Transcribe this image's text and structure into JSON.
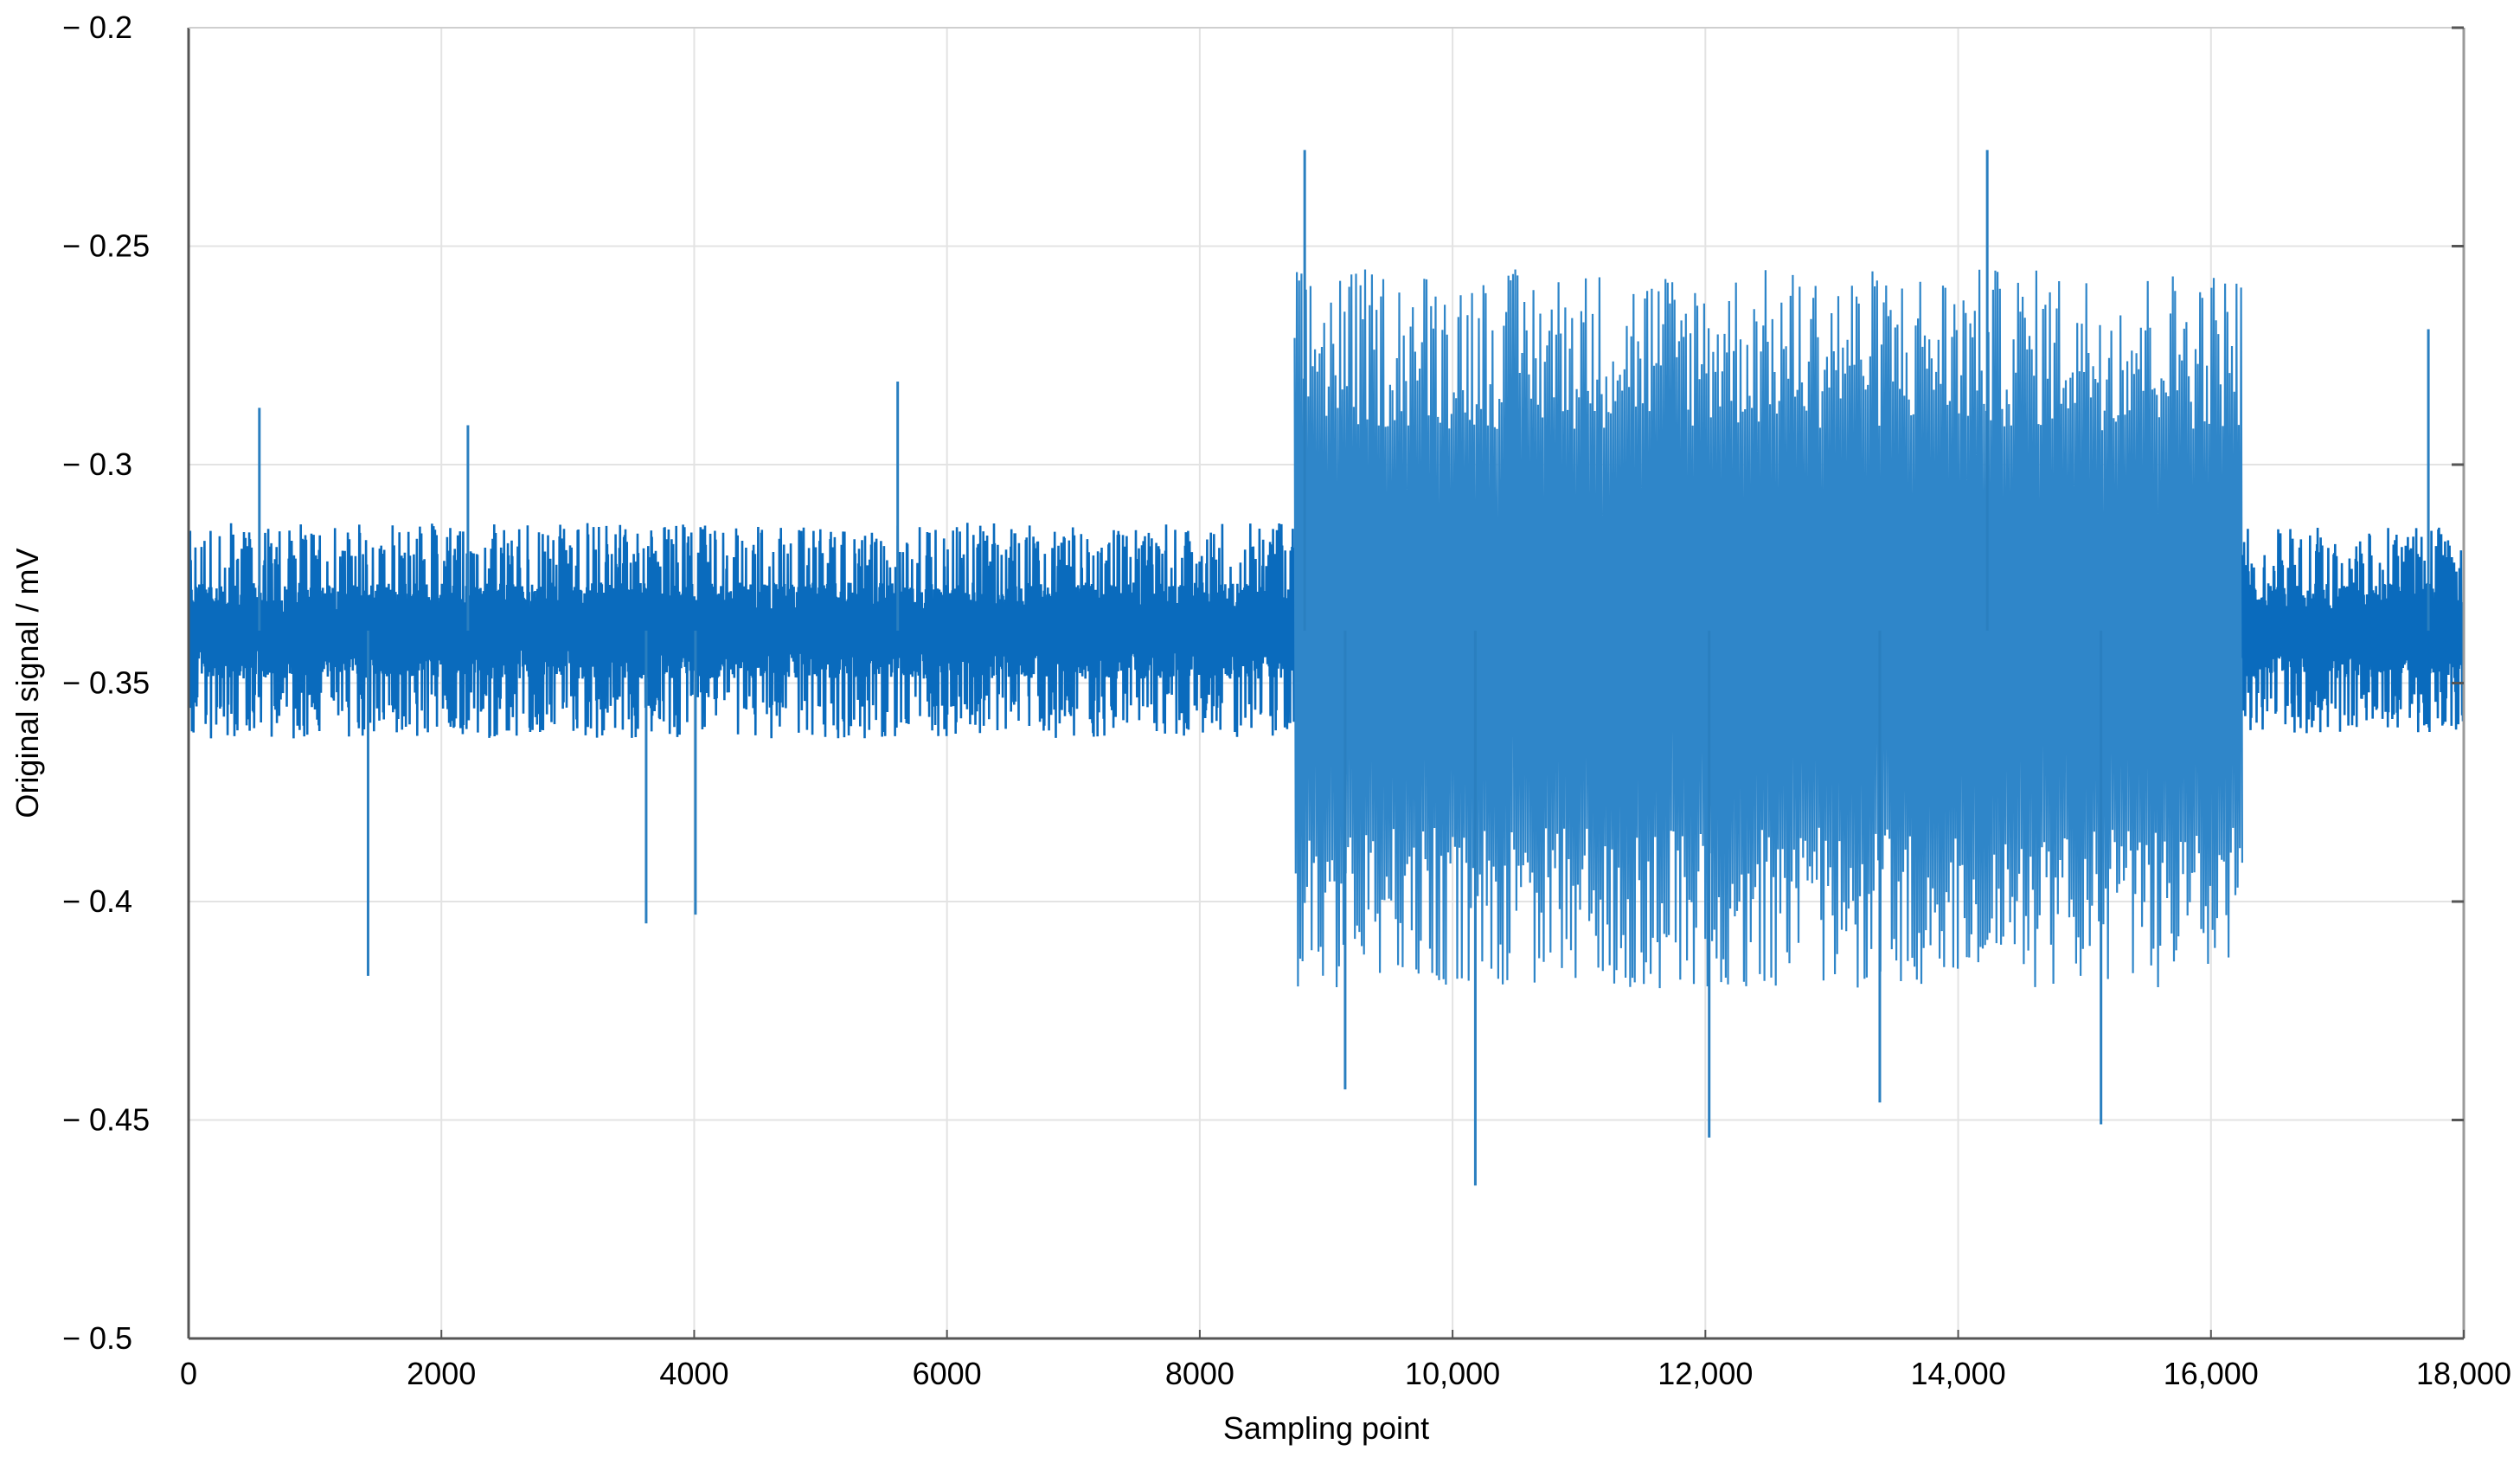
{
  "chart_data": {
    "type": "line",
    "title": "",
    "xlabel": "Sampling point",
    "ylabel": "Original signal / mV",
    "xlim": [
      0,
      18000
    ],
    "ylim": [
      -0.5,
      -0.2
    ],
    "grid": true,
    "x_ticks": [
      0,
      2000,
      4000,
      6000,
      8000,
      10000,
      12000,
      14000,
      16000,
      18000
    ],
    "x_tick_labels": [
      "0",
      "2000",
      "4000",
      "6000",
      "8000",
      "10,000",
      "12,000",
      "14,000",
      "16,000",
      "18,000"
    ],
    "y_ticks": [
      -0.2,
      -0.25,
      -0.3,
      -0.35,
      -0.4,
      -0.45,
      -0.5
    ],
    "y_tick_labels": [
      "− 0.2",
      "− 0.25",
      "− 0.3",
      "− 0.35",
      "− 0.4",
      "− 0.45",
      "− 0.5"
    ],
    "series": [
      {
        "color": "#0a6bbd",
        "x_range": [
          0,
          18000
        ],
        "segments": [
          {
            "x_start": 0,
            "x_end": 8750,
            "mean": -0.338,
            "envelope": [
              -0.362,
              -0.315
            ],
            "min": -0.417,
            "max": -0.281
          },
          {
            "x_start": 8750,
            "x_end": 16250,
            "mean": -0.338,
            "envelope": [
              -0.42,
              -0.255
            ],
            "min": -0.465,
            "max": -0.228
          },
          {
            "x_start": 16250,
            "x_end": 18000,
            "mean": -0.338,
            "envelope": [
              -0.36,
              -0.315
            ],
            "min": -0.393,
            "max": -0.269
          }
        ],
        "spikes": [
          {
            "x": 560,
            "y": -0.287
          },
          {
            "x": 1420,
            "y": -0.417
          },
          {
            "x": 2210,
            "y": -0.291
          },
          {
            "x": 3620,
            "y": -0.405
          },
          {
            "x": 4010,
            "y": -0.403
          },
          {
            "x": 5610,
            "y": -0.281
          },
          {
            "x": 8830,
            "y": -0.228
          },
          {
            "x": 9150,
            "y": -0.443
          },
          {
            "x": 10180,
            "y": -0.465
          },
          {
            "x": 12030,
            "y": -0.454
          },
          {
            "x": 13380,
            "y": -0.446
          },
          {
            "x": 14230,
            "y": -0.228
          },
          {
            "x": 15130,
            "y": -0.451
          },
          {
            "x": 17720,
            "y": -0.269
          }
        ]
      }
    ]
  }
}
